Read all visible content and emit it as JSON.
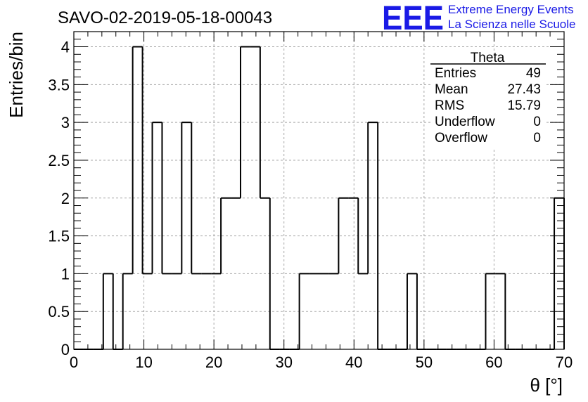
{
  "chart_data": {
    "type": "bar",
    "title": "SAVO-02-2019-05-18-00043",
    "xlabel": "θ [°]",
    "ylabel": "Entries/bin",
    "xlim": [
      0,
      70
    ],
    "ylim": [
      0,
      4.2
    ],
    "x_ticks": [
      "0",
      "10",
      "20",
      "30",
      "40",
      "50",
      "60",
      "70"
    ],
    "x_tick_values": [
      0,
      10,
      20,
      30,
      40,
      50,
      60,
      70
    ],
    "y_ticks": [
      "0",
      "0.5",
      "1",
      "1.5",
      "2",
      "2.5",
      "3",
      "3.5",
      "4"
    ],
    "y_tick_values": [
      0,
      0.5,
      1,
      1.5,
      2,
      2.5,
      3,
      3.5,
      4
    ],
    "grid": true,
    "bin_width": 1.4,
    "bin_start": 0,
    "values": [
      0,
      0,
      0,
      1,
      0,
      1,
      4,
      1,
      3,
      1,
      1,
      3,
      1,
      1,
      1,
      2,
      2,
      4,
      4,
      2,
      0,
      0,
      0,
      1,
      1,
      1,
      1,
      2,
      2,
      1,
      3,
      0,
      0,
      0,
      1,
      0,
      0,
      0,
      0,
      0,
      0,
      0,
      1,
      1,
      0,
      0,
      0,
      0,
      0,
      2
    ]
  },
  "stats_box": {
    "title": "Theta",
    "rows": [
      {
        "label": "Entries",
        "value": "49"
      },
      {
        "label": "Mean",
        "value": "27.43"
      },
      {
        "label": "RMS",
        "value": "15.79"
      },
      {
        "label": "Underflow",
        "value": "0"
      },
      {
        "label": "Overflow",
        "value": "0"
      }
    ]
  },
  "logo": {
    "mark": "EEE",
    "line1": "Extreme Energy Events",
    "line2": "La Scienza nelle Scuole",
    "color": "#1a1ae6"
  }
}
